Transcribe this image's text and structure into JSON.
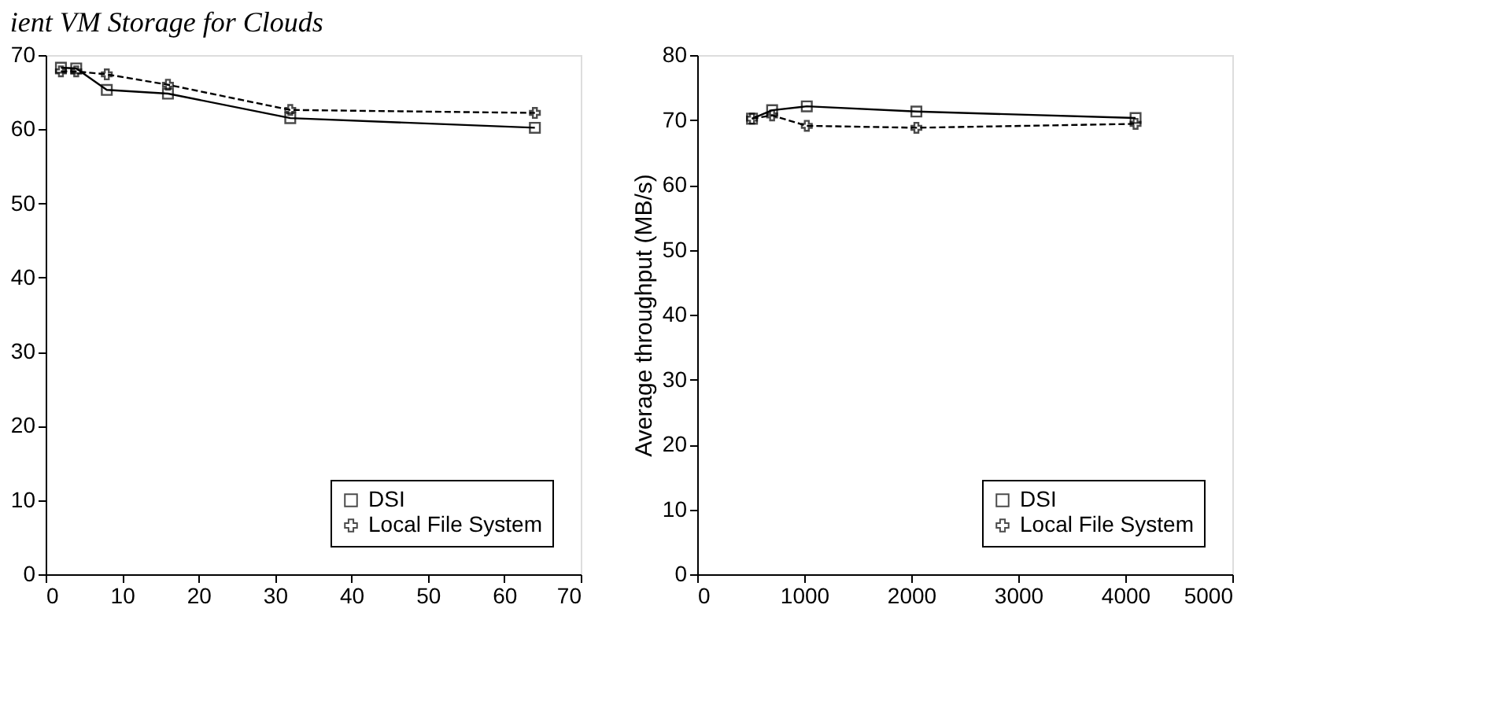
{
  "chart_data": [
    {
      "type": "line",
      "title": "ient VM Storage for Clouds",
      "x": [
        2,
        4,
        8,
        16,
        32,
        64
      ],
      "xlim": [
        0,
        70
      ],
      "xticks": [
        0,
        10,
        20,
        30,
        40,
        50,
        60,
        70
      ],
      "ylim": [
        0,
        70
      ],
      "yticks": [
        0,
        10,
        20,
        30,
        40,
        50,
        60,
        70
      ],
      "grid": false,
      "legend": "bottom right",
      "series": [
        {
          "name": "DSI",
          "color": "#000000",
          "marker": "square",
          "line_style": "solid",
          "values": [
            68.3,
            68.2,
            65.3,
            64.8,
            61.5,
            60.2
          ]
        },
        {
          "name": "Local File System",
          "color": "#000000",
          "marker": "cross",
          "line_style": "dashed",
          "values": [
            67.8,
            67.8,
            67.4,
            66.0,
            62.6,
            62.2
          ]
        }
      ]
    },
    {
      "type": "line",
      "ylabel": "Average throughput (MB/s)",
      "x": [
        512,
        700,
        1024,
        2048,
        4096
      ],
      "xlim": [
        0,
        5000
      ],
      "xticks": [
        0,
        1000,
        2000,
        3000,
        4000,
        5000
      ],
      "ylim": [
        0,
        80
      ],
      "yticks": [
        0,
        10,
        20,
        30,
        40,
        50,
        60,
        70,
        80
      ],
      "grid": false,
      "legend": "bottom right",
      "series": [
        {
          "name": "DSI",
          "color": "#000000",
          "marker": "square",
          "line_style": "solid",
          "values": [
            70.2,
            71.5,
            72.1,
            71.3,
            70.3
          ]
        },
        {
          "name": "Local File System",
          "color": "#000000",
          "marker": "cross",
          "line_style": "dashed",
          "values": [
            70.2,
            70.7,
            69.1,
            68.8,
            69.4
          ]
        }
      ]
    }
  ]
}
